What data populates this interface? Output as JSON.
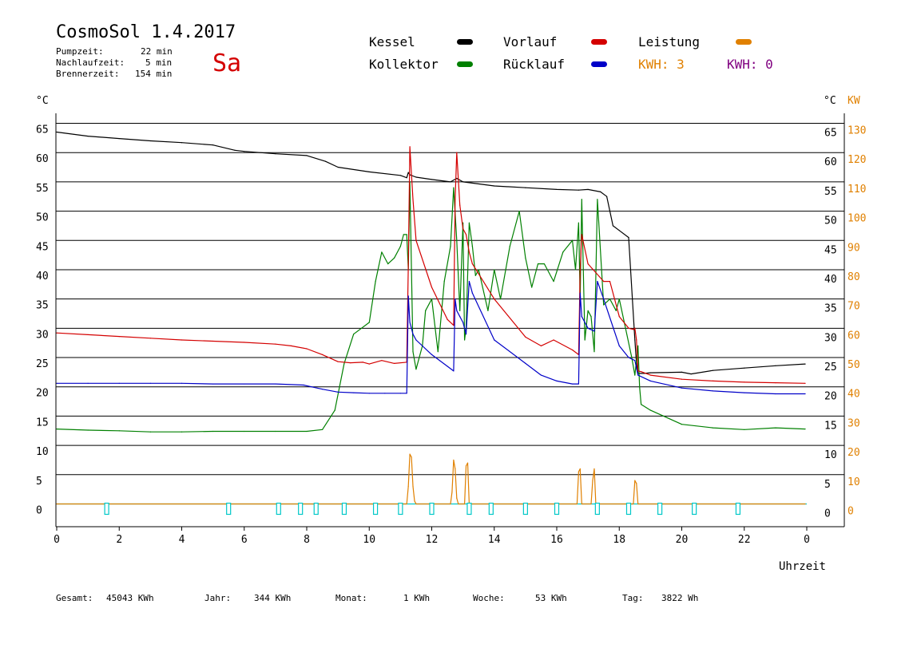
{
  "header": {
    "title": "CosmoSol 1.4.2017",
    "day": "Sa",
    "pump_label": "Pumpzeit:",
    "pump_value": "22 min",
    "nachlauf_label": "Nachlaufzeit:",
    "nachlauf_value": "5 min",
    "brenner_label": "Brennerzeit:",
    "brenner_value": "154 min"
  },
  "legend": {
    "kessel": "Kessel",
    "kollektor": "Kollektor",
    "vorlauf": "Vorlauf",
    "ruecklauf": "Rücklauf",
    "leistung": "Leistung",
    "kwh1": "KWH: 3",
    "kwh2": "KWH: 0"
  },
  "colors": {
    "kessel": "#000000",
    "kollektor": "#008000",
    "vorlauf": "#d40000",
    "ruecklauf": "#0000c8",
    "leistung": "#e08000",
    "kwh2": "#800080",
    "pump": "#00c8c8"
  },
  "footer": {
    "gesamt_label": "Gesamt:",
    "gesamt_value": "45043 KWh",
    "jahr_label": "Jahr:",
    "jahr_value": "344 KWh",
    "monat_label": "Monat:",
    "monat_value": "1 KWh",
    "woche_label": "Woche:",
    "woche_value": "53 KWh",
    "tag_label": "Tag:",
    "tag_value": "3822 Wh"
  },
  "chart_data": {
    "type": "line",
    "xlabel": "Uhrzeit",
    "ylabel_left": "°C",
    "ylabel_right": "°C",
    "ylabel_right2": "KW",
    "x_ticks": [
      "0",
      "2",
      "4",
      "6",
      "8",
      "10",
      "12",
      "14",
      "16",
      "18",
      "20",
      "22",
      "0"
    ],
    "y_ticks_left": [
      "65",
      "60",
      "55",
      "50",
      "45",
      "40",
      "35",
      "30",
      "25",
      "20",
      "15",
      "10",
      "5",
      "0"
    ],
    "y_ticks_right": [
      "65",
      "60",
      "55",
      "50",
      "45",
      "40",
      "35",
      "30",
      "25",
      "20",
      "15",
      "10",
      "5",
      "0"
    ],
    "y_ticks_right2": [
      "130",
      "120",
      "110",
      "100",
      "90",
      "80",
      "70",
      "60",
      "50",
      "40",
      "30",
      "20",
      "10",
      "0"
    ],
    "xlim": [
      0,
      24
    ],
    "ylim": [
      0,
      65
    ],
    "series": [
      {
        "name": "Kessel",
        "color_key": "kessel",
        "x": [
          0,
          1,
          2,
          3,
          4,
          5,
          5.7,
          6,
          7,
          8,
          8.6,
          9,
          10,
          11,
          11.2,
          11.25,
          11.3,
          11.5,
          12,
          12.6,
          12.8,
          13,
          14,
          15,
          16,
          16.7,
          17,
          17.4,
          17.6,
          17.8,
          18,
          18.3,
          18.5,
          18.55,
          18.6,
          18.8,
          19,
          20,
          20.3,
          21,
          22,
          23,
          23.95
        ],
        "y": [
          63.5,
          62.8,
          62.4,
          62,
          61.7,
          61.3,
          60.4,
          60.2,
          59.8,
          59.5,
          58.5,
          57.5,
          56.7,
          56.1,
          55.7,
          56.6,
          56.2,
          55.8,
          55.4,
          55,
          55.6,
          55,
          54.3,
          54,
          53.7,
          53.6,
          53.7,
          53.3,
          52.5,
          47.5,
          46.7,
          45.5,
          28,
          24,
          22.3,
          22.3,
          22.4,
          22.5,
          22.2,
          22.8,
          23.2,
          23.6,
          23.9
        ]
      },
      {
        "name": "Kollektor",
        "color_key": "kollektor",
        "x": [
          0,
          1,
          2,
          3,
          4,
          5,
          6,
          7,
          8,
          8.5,
          8.9,
          9.2,
          9.5,
          10,
          10.2,
          10.4,
          10.6,
          10.8,
          11,
          11.1,
          11.2,
          11.25,
          11.3,
          11.4,
          11.5,
          11.7,
          11.8,
          12,
          12.2,
          12.4,
          12.6,
          12.7,
          12.8,
          12.9,
          13,
          13.05,
          13.1,
          13.2,
          13.3,
          13.4,
          13.5,
          13.8,
          14,
          14.2,
          14.5,
          14.8,
          15,
          15.2,
          15.4,
          15.6,
          15.9,
          16.2,
          16.5,
          16.6,
          16.7,
          16.75,
          16.8,
          16.9,
          17,
          17.1,
          17.2,
          17.3,
          17.5,
          17.7,
          17.9,
          18,
          18.2,
          18.4,
          18.5,
          18.6,
          18.65,
          18.7,
          19,
          20,
          21,
          22,
          23,
          23.95
        ],
        "y": [
          12.8,
          12.6,
          12.5,
          12.3,
          12.3,
          12.4,
          12.4,
          12.4,
          12.4,
          12.7,
          16,
          24,
          29,
          31,
          38,
          43,
          41,
          42,
          44,
          46,
          46,
          40,
          55,
          26,
          23,
          27,
          33,
          35,
          26,
          38,
          44,
          54,
          45,
          33,
          48,
          28,
          30,
          48,
          44,
          39,
          40,
          33,
          40,
          35,
          44,
          50,
          42,
          37,
          41,
          41,
          38,
          43,
          45,
          40,
          48,
          35,
          52,
          28,
          33,
          32,
          26,
          52,
          34,
          35,
          33,
          35,
          30,
          25,
          22,
          27,
          20,
          17,
          16,
          13.6,
          13,
          12.7,
          13,
          12.8
        ]
      },
      {
        "name": "Vorlauf",
        "color_key": "vorlauf",
        "x": [
          0,
          1,
          2,
          3,
          4,
          5,
          6,
          7,
          7.5,
          8,
          8.5,
          9,
          9.4,
          9.8,
          10,
          10.4,
          10.8,
          11.2,
          11.25,
          11.3,
          11.4,
          11.5,
          12,
          12.5,
          12.7,
          12.75,
          12.8,
          12.9,
          13,
          13.1,
          13.2,
          13.3,
          14,
          15,
          15.5,
          15.9,
          16.5,
          16.7,
          16.75,
          16.8,
          17,
          17.5,
          17.7,
          18,
          18.3,
          18.45,
          18.5,
          18.55,
          18.6,
          18.7,
          19,
          20,
          21,
          22,
          23,
          23.95
        ],
        "y": [
          29.2,
          28.9,
          28.6,
          28.3,
          28,
          27.8,
          27.6,
          27.3,
          27,
          26.5,
          25.5,
          24.3,
          24.1,
          24.2,
          23.9,
          24.5,
          24,
          24.2,
          41,
          61,
          52,
          45,
          37,
          31.5,
          30.5,
          52,
          60,
          51,
          47,
          46,
          43,
          41,
          35,
          28.5,
          27,
          28,
          26.3,
          25.5,
          40,
          46,
          41,
          38,
          38,
          32,
          30,
          29.8,
          30,
          28,
          22.7,
          22.6,
          22,
          21.3,
          21,
          20.8,
          20.7,
          20.6
        ]
      },
      {
        "name": "Rücklauf",
        "color_key": "ruecklauf",
        "x": [
          0,
          1,
          2,
          3,
          4,
          5,
          6,
          7,
          7.9,
          8.5,
          9,
          9.5,
          10,
          10.5,
          11,
          11.2,
          11.25,
          11.3,
          11.4,
          11.5,
          12,
          12.5,
          12.7,
          12.75,
          12.8,
          12.9,
          13,
          13.1,
          13.2,
          13.3,
          14,
          15,
          15.5,
          16,
          16.5,
          16.7,
          16.75,
          16.8,
          17,
          17.2,
          17.3,
          17.5,
          18,
          18.3,
          18.5,
          18.6,
          19,
          20,
          21,
          22,
          23,
          23.95
        ],
        "y": [
          20.6,
          20.6,
          20.6,
          20.6,
          20.6,
          20.5,
          20.5,
          20.5,
          20.3,
          19.6,
          19.1,
          19,
          18.9,
          18.9,
          18.9,
          18.9,
          35.5,
          31,
          29,
          28,
          25.5,
          23.5,
          22.7,
          35,
          33,
          32,
          31,
          29,
          38,
          36,
          28,
          24,
          22,
          21,
          20.5,
          20.5,
          36,
          32,
          30,
          29.5,
          38,
          35,
          27,
          25,
          24.5,
          22,
          21,
          19.8,
          19.3,
          19,
          18.8,
          18.8
        ]
      },
      {
        "name": "Leistung",
        "color_key": "leistung",
        "x": [
          0,
          11.2,
          11.25,
          11.3,
          11.35,
          11.4,
          11.45,
          11.5,
          12.6,
          12.65,
          12.7,
          12.75,
          12.8,
          12.85,
          13.05,
          13.1,
          13.15,
          13.2,
          16.65,
          16.7,
          16.75,
          16.8,
          17.1,
          17.15,
          17.2,
          17.25,
          18.45,
          18.5,
          18.55,
          18.6,
          23.95
        ],
        "y": [
          0,
          0,
          3,
          8.5,
          8,
          3,
          0.5,
          0,
          0,
          2,
          7.5,
          6,
          1,
          0,
          0,
          6.5,
          7,
          0,
          0,
          5.5,
          6,
          0,
          0,
          4,
          6,
          0,
          0,
          4,
          3.5,
          0,
          0
        ]
      },
      {
        "name": "Pumpe",
        "color_key": "pump",
        "x": [
          1.6,
          5.5,
          7.1,
          7.8,
          8.3,
          9.2,
          10.2,
          11,
          12,
          13.2,
          13.9,
          15,
          16,
          17.3,
          18.3,
          19.3,
          20.4,
          21.8
        ],
        "y": [
          1,
          1,
          1,
          1,
          1,
          1,
          1,
          1,
          1,
          1,
          1,
          1,
          1,
          1,
          1,
          1,
          1,
          1
        ]
      }
    ]
  }
}
